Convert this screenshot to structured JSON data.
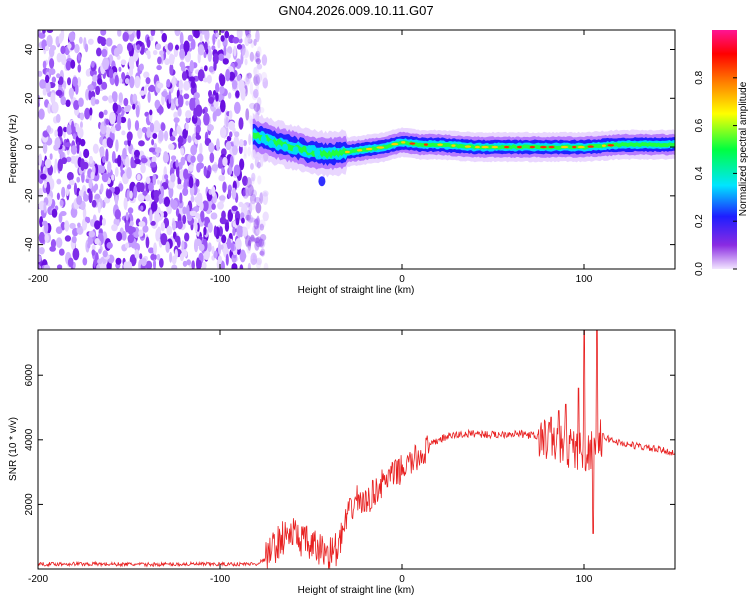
{
  "figure_title": "GN04.2026.009.10.11.G07",
  "chart_data": [
    {
      "type": "heatmap",
      "title": "",
      "xlabel": "Height of straight line (km)",
      "ylabel": "Frequency (Hz)",
      "xlim": [
        -200,
        150
      ],
      "ylim": [
        -50,
        48
      ],
      "x_ticks": [
        "-200",
        "-100",
        "0",
        "100"
      ],
      "x_tick_values": [
        -200,
        -100,
        0,
        100
      ],
      "y_ticks": [
        "-40",
        "-20",
        "0",
        "20",
        "40"
      ],
      "y_tick_values": [
        -40,
        -20,
        0,
        20,
        40
      ],
      "noise_region_x": [
        -200,
        -78
      ],
      "signal_track": {
        "x": [
          -82,
          -70,
          -60,
          -50,
          -40,
          -30,
          -20,
          -10,
          0,
          10,
          20,
          40,
          60,
          80,
          100,
          120,
          150
        ],
        "frequency": [
          5,
          2,
          0,
          -2,
          -3,
          -2,
          -1,
          0,
          2,
          1,
          1,
          0,
          0,
          0,
          0,
          1,
          1
        ]
      },
      "isolated_blob": {
        "x": -44,
        "frequency": -14
      },
      "colorbar": {
        "label": "Normalized spectral amplitude",
        "range": [
          0,
          1
        ],
        "ticks": [
          "0.0",
          "0.2",
          "0.4",
          "0.6",
          "0.8"
        ],
        "tick_values": [
          0.0,
          0.2,
          0.4,
          0.6,
          0.8
        ],
        "colors": [
          "#f2e6ff",
          "#8a2be2",
          "#1e1eff",
          "#00e5ff",
          "#00ff40",
          "#ffff00",
          "#ff8000",
          "#ff0000",
          "#ff1493"
        ]
      }
    },
    {
      "type": "line",
      "title": "",
      "xlabel": "Height of straight line (km)",
      "ylabel": "SNR (10 * v/v)",
      "xlim": [
        -200,
        150
      ],
      "ylim": [
        0,
        7400
      ],
      "x_ticks": [
        "-200",
        "-100",
        "0",
        "100"
      ],
      "x_tick_values": [
        -200,
        -100,
        0,
        100
      ],
      "y_ticks": [
        "2000",
        "4000",
        "6000"
      ],
      "y_tick_values": [
        2000,
        4000,
        6000
      ],
      "color": "#e82020",
      "series": [
        {
          "name": "SNR",
          "x": [
            -200,
            -180,
            -160,
            -140,
            -120,
            -100,
            -90,
            -80,
            -75,
            -70,
            -65,
            -60,
            -55,
            -50,
            -45,
            -40,
            -35,
            -30,
            -25,
            -20,
            -15,
            -10,
            -5,
            0,
            5,
            10,
            15,
            20,
            25,
            30,
            40,
            50,
            60,
            70,
            80,
            85,
            90,
            95,
            100,
            105,
            108,
            110,
            120,
            130,
            140,
            150
          ],
          "values": [
            150,
            160,
            150,
            140,
            150,
            150,
            150,
            160,
            300,
            700,
            1000,
            1100,
            900,
            700,
            600,
            500,
            650,
            1600,
            2200,
            2000,
            2400,
            2700,
            2900,
            3100,
            3300,
            3500,
            3800,
            4000,
            4100,
            4150,
            4200,
            4150,
            4200,
            4150,
            4000,
            3900,
            3800,
            3700,
            3600,
            3700,
            3900,
            4100,
            3900,
            3800,
            3700,
            3600
          ]
        }
      ],
      "spikes": [
        {
          "x": 82,
          "value": 4700
        },
        {
          "x": 86,
          "value": 4900
        },
        {
          "x": 90,
          "value": 5100
        },
        {
          "x": 97,
          "value": 5600
        },
        {
          "x": 100,
          "value": 7400
        },
        {
          "x": 105,
          "value": 1100
        },
        {
          "x": 107,
          "value": 7400
        }
      ]
    }
  ]
}
